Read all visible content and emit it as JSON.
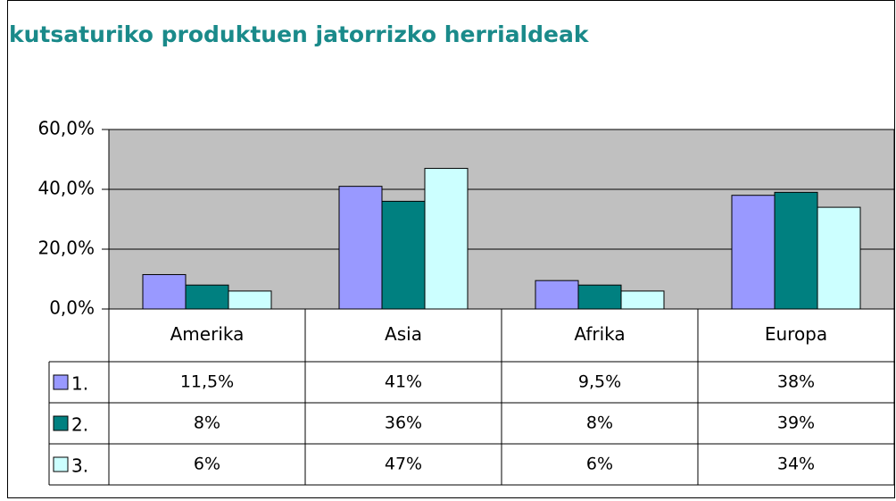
{
  "chart_data": {
    "type": "bar",
    "title": "kutsaturiko produktuen jatorrizko herrialdeak",
    "categories": [
      "Amerika",
      "Asia",
      "Afrika",
      "Europa"
    ],
    "series": [
      {
        "name": "1.",
        "color": "#9999ff",
        "values": [
          11.5,
          41,
          9.5,
          38
        ],
        "value_labels": [
          "11,5%",
          "41%",
          "9,5%",
          "38%"
        ]
      },
      {
        "name": "2.",
        "color": "#008080",
        "values": [
          8,
          36,
          8,
          39
        ],
        "value_labels": [
          "8%",
          "36%",
          "8%",
          "39%"
        ]
      },
      {
        "name": "3.",
        "color": "#ccffff",
        "values": [
          6,
          47,
          6,
          34
        ],
        "value_labels": [
          "6%",
          "47%",
          "6%",
          "34%"
        ]
      }
    ],
    "ylim": [
      0,
      60
    ],
    "yticks": [
      {
        "value": 0,
        "label": "0,0%"
      },
      {
        "value": 20,
        "label": "20,0%"
      },
      {
        "value": 40,
        "label": "40,0%"
      },
      {
        "value": 60,
        "label": "60,0%"
      }
    ],
    "grid": true,
    "plot_background": "#c0c0c0"
  }
}
